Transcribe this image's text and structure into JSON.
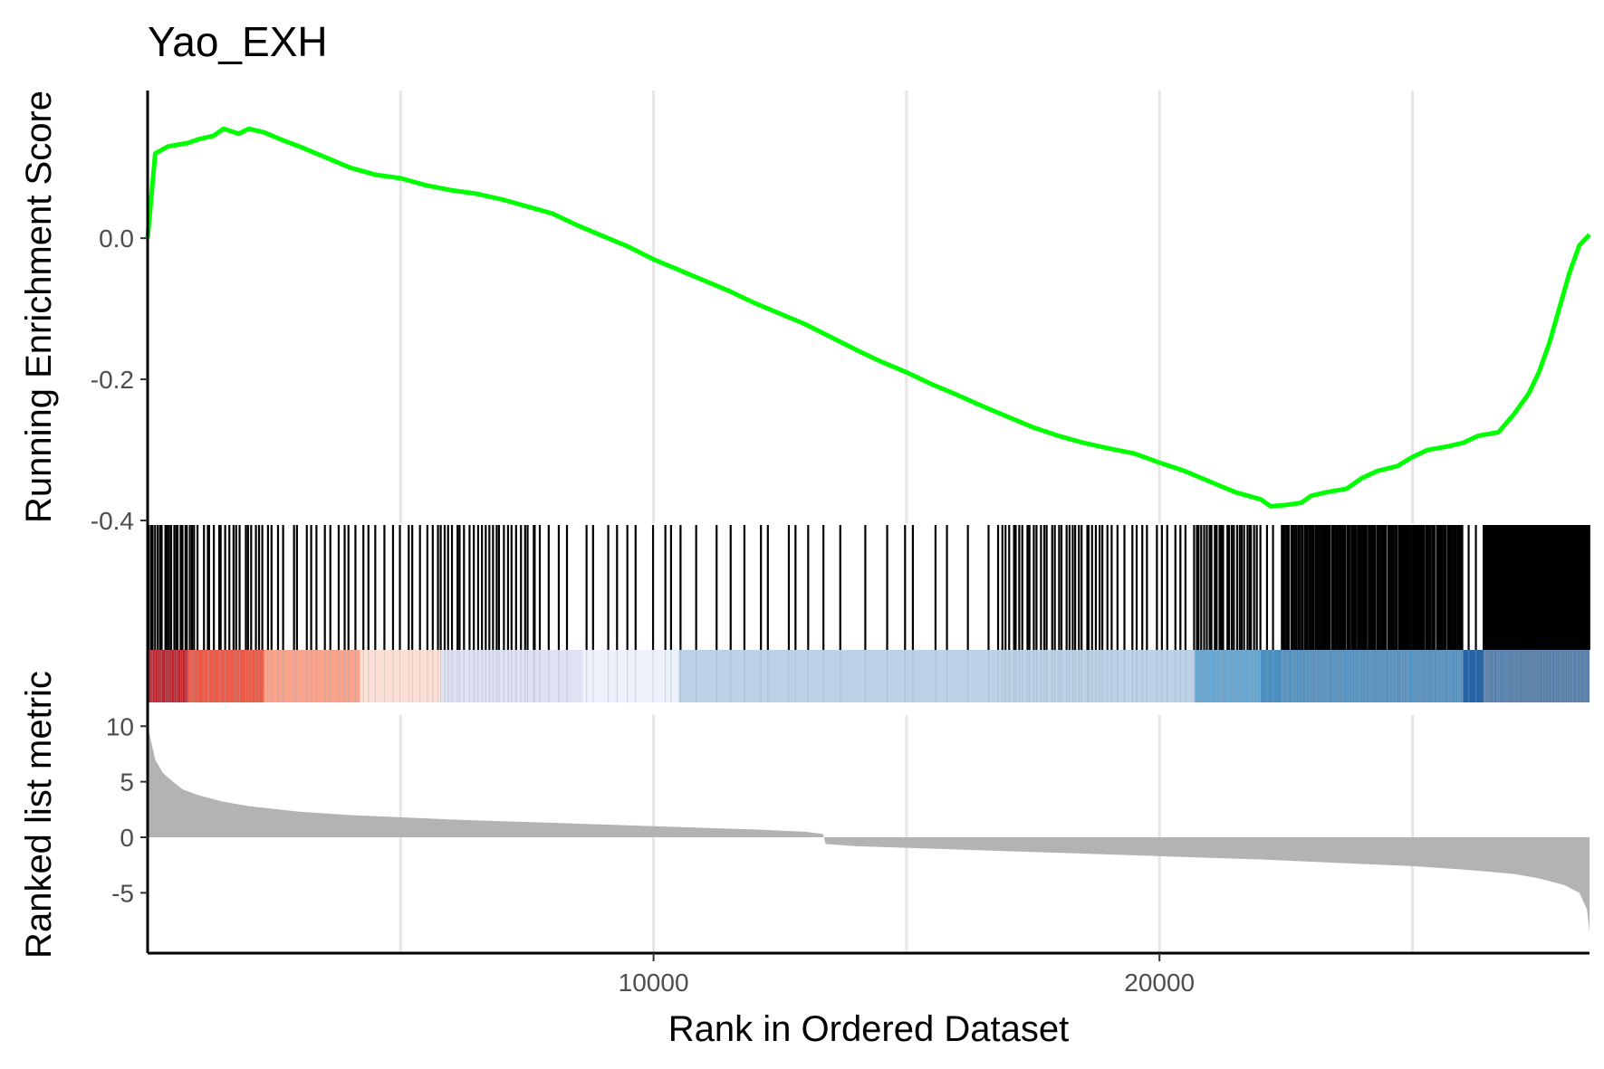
{
  "chart_data": {
    "type": "line",
    "title": "Yao_EXH",
    "xlabel": "Rank in Ordered Dataset",
    "xlim": [
      0,
      28500
    ],
    "x_ticks": [
      "10000",
      "20000"
    ],
    "x_tick_values": [
      10000,
      20000
    ],
    "x_minor_gridlines": [
      5000,
      10000,
      15000,
      20000,
      25000
    ],
    "grid": "vertical",
    "legend": "none",
    "panels": {
      "enrichment": {
        "ylabel": "Running Enrichment Score",
        "ylim": [
          -0.4,
          0.19
        ],
        "y_ticks": [
          "0.0",
          "-0.2",
          "-0.4"
        ],
        "y_tick_values": [
          0.0,
          -0.2,
          -0.4
        ],
        "line_color": "#00ff00",
        "points": {
          "x": [
            0,
            150,
            400,
            800,
            1000,
            1300,
            1500,
            1800,
            2000,
            2300,
            2700,
            3000,
            3500,
            4000,
            4500,
            5000,
            5500,
            6000,
            6500,
            7000,
            7500,
            8000,
            8500,
            9000,
            9500,
            10000,
            10500,
            11000,
            11500,
            12000,
            12500,
            13000,
            13500,
            14000,
            14500,
            15000,
            15500,
            16000,
            16500,
            17000,
            17500,
            18000,
            18500,
            19000,
            19500,
            20000,
            20500,
            21000,
            21500,
            22000,
            22200,
            22500,
            22800,
            23000,
            23300,
            23700,
            24000,
            24300,
            24700,
            25000,
            25300,
            25700,
            26000,
            26300,
            26700,
            27000,
            27300,
            27500,
            27700,
            27900,
            28100,
            28300,
            28500
          ],
          "y": [
            0.0,
            0.12,
            0.13,
            0.135,
            0.14,
            0.145,
            0.155,
            0.148,
            0.155,
            0.15,
            0.138,
            0.13,
            0.115,
            0.1,
            0.09,
            0.085,
            0.075,
            0.068,
            0.063,
            0.055,
            0.045,
            0.035,
            0.018,
            0.003,
            -0.012,
            -0.03,
            -0.045,
            -0.06,
            -0.075,
            -0.092,
            -0.107,
            -0.122,
            -0.14,
            -0.158,
            -0.175,
            -0.19,
            -0.207,
            -0.222,
            -0.238,
            -0.253,
            -0.268,
            -0.28,
            -0.29,
            -0.298,
            -0.305,
            -0.318,
            -0.33,
            -0.345,
            -0.36,
            -0.37,
            -0.38,
            -0.378,
            -0.375,
            -0.365,
            -0.36,
            -0.355,
            -0.34,
            -0.33,
            -0.323,
            -0.31,
            -0.3,
            -0.295,
            -0.29,
            -0.28,
            -0.275,
            -0.25,
            -0.22,
            -0.19,
            -0.15,
            -0.1,
            -0.05,
            -0.01,
            0.005
          ]
        }
      },
      "hits": {
        "tick_color": "#000000",
        "segments": [
          {
            "start": 0,
            "end": 900,
            "count": 20
          },
          {
            "start": 900,
            "end": 2400,
            "count": 20
          },
          {
            "start": 2400,
            "end": 4200,
            "count": 14
          },
          {
            "start": 4200,
            "end": 5600,
            "count": 10
          },
          {
            "start": 5600,
            "end": 7800,
            "count": 28
          },
          {
            "start": 7800,
            "end": 10500,
            "count": 12
          },
          {
            "start": 10500,
            "end": 13300,
            "count": 10
          },
          {
            "start": 13300,
            "end": 16800,
            "count": 10
          },
          {
            "start": 16800,
            "end": 19000,
            "count": 32
          },
          {
            "start": 19000,
            "end": 20700,
            "count": 14
          },
          {
            "start": 20700,
            "end": 22000,
            "count": 26
          },
          {
            "start": 22000,
            "end": 22400,
            "count": 2
          },
          {
            "start": 22400,
            "end": 26000,
            "count": 120
          },
          {
            "start": 26000,
            "end": 26200,
            "count": 1
          },
          {
            "start": 26200,
            "end": 26400,
            "count": 1
          },
          {
            "start": 26400,
            "end": 28500,
            "count": 160
          }
        ]
      },
      "ranked_metric": {
        "ylabel": "Ranked list metric",
        "ylim": [
          -8.8,
          11
        ],
        "y_ticks": [
          "10",
          "5",
          "0",
          "-5"
        ],
        "y_tick_values": [
          10,
          5,
          0,
          -5
        ],
        "fill_color": "#b3b3b3",
        "points": {
          "x": [
            0,
            50,
            150,
            300,
            500,
            700,
            1000,
            1500,
            2000,
            3000,
            4000,
            5000,
            6000,
            7000,
            8000,
            9000,
            10000,
            11000,
            12000,
            13000,
            13350,
            13400,
            14000,
            15000,
            16000,
            17000,
            18000,
            19000,
            20000,
            21000,
            22000,
            23000,
            24000,
            25000,
            26000,
            27000,
            27500,
            28000,
            28300,
            28450,
            28500
          ],
          "y": [
            10,
            9,
            7,
            5.8,
            5,
            4.3,
            3.8,
            3.2,
            2.8,
            2.3,
            2.0,
            1.8,
            1.6,
            1.45,
            1.3,
            1.15,
            1.0,
            0.85,
            0.7,
            0.5,
            0.3,
            -0.6,
            -0.8,
            -0.95,
            -1.1,
            -1.25,
            -1.4,
            -1.55,
            -1.7,
            -1.85,
            -2.0,
            -2.2,
            -2.4,
            -2.6,
            -2.9,
            -3.3,
            -3.7,
            -4.3,
            -5.0,
            -6.5,
            -8.5
          ]
        }
      },
      "color_bar": {
        "bands": [
          {
            "start": 0,
            "end": 800,
            "color": "#c81d24"
          },
          {
            "start": 800,
            "end": 2300,
            "color": "#ee5a45"
          },
          {
            "start": 2300,
            "end": 4200,
            "color": "#f9a48b"
          },
          {
            "start": 4200,
            "end": 5800,
            "color": "#fde0d5"
          },
          {
            "start": 5800,
            "end": 8600,
            "color": "#dfe2f2"
          },
          {
            "start": 8600,
            "end": 10500,
            "color": "#edf1fc"
          },
          {
            "start": 10500,
            "end": 20700,
            "color": "#bcd2e6"
          },
          {
            "start": 20700,
            "end": 22000,
            "color": "#66a6d3"
          },
          {
            "start": 22000,
            "end": 26000,
            "color": "#4b8fc3"
          },
          {
            "start": 26000,
            "end": 28500,
            "color": "#2863a4"
          }
        ],
        "shade_color": "#9aaab8"
      }
    }
  }
}
